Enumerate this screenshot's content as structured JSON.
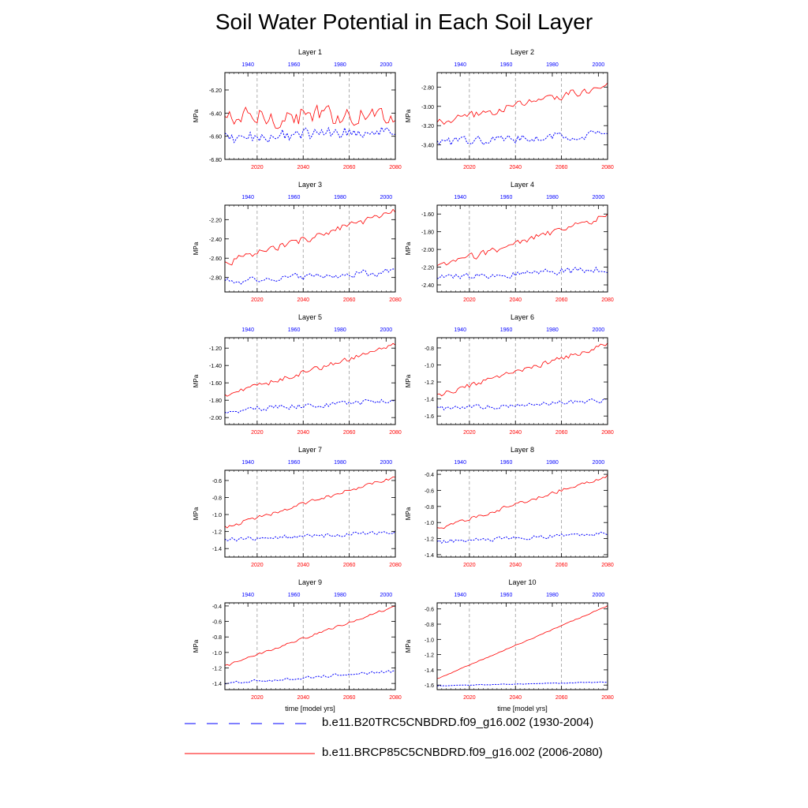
{
  "title": "Soil Water Potential in Each Soil Layer",
  "colors": {
    "historical": "#0000ff",
    "future": "#ff0000",
    "grid": "#9a9a9a"
  },
  "chart_data": {
    "type": "line",
    "ylabel": "MPa",
    "xlabel": "time [model yrs]",
    "x_bottom": {
      "label": "time [model yrs]",
      "range": [
        2006,
        2080
      ],
      "ticks": [
        2020,
        2040,
        2060,
        2080
      ],
      "color": "#ff0000"
    },
    "x_top": {
      "range": [
        1930,
        2004
      ],
      "ticks": [
        1940,
        1960,
        1980,
        2000
      ],
      "color": "#0000ff"
    },
    "grid": "vertical dashed at 2020, 2040, 2060",
    "legend": [
      {
        "label": "b.e11.B20TRC5CNBDRD.f09_g16.002 (1930-2004)",
        "style": "dashed",
        "color": "#0000ff"
      },
      {
        "label": "b.e11.BRCP85C5CNBDRD.f09_g16.002 (2006-2080)",
        "style": "solid",
        "color": "#ff0000"
      }
    ],
    "panels": [
      {
        "title": "Layer 1",
        "ylim": [
          -6.8,
          -6.05
        ],
        "yticks": [
          -6.8,
          -6.6,
          -6.4,
          -6.2
        ],
        "ytick_labels": [
          "-6.80",
          "-6.60",
          "-6.40",
          "-6.20"
        ],
        "red_trend": [
          -6.45,
          -6.4
        ],
        "red_noise": 0.12,
        "blue_trend": [
          -6.62,
          -6.54
        ],
        "blue_noise": 0.07
      },
      {
        "title": "Layer 2",
        "ylim": [
          -3.55,
          -2.65
        ],
        "yticks": [
          -3.4,
          -3.2,
          -3.0,
          -2.8
        ],
        "ytick_labels": [
          "-3.40",
          "-3.20",
          "-3.00",
          "-2.80"
        ],
        "red_trend": [
          -3.18,
          -2.78
        ],
        "red_noise": 0.06,
        "blue_trend": [
          -3.38,
          -3.28
        ],
        "blue_noise": 0.06
      },
      {
        "title": "Layer 3",
        "ylim": [
          -2.95,
          -2.05
        ],
        "yticks": [
          -2.8,
          -2.6,
          -2.4,
          -2.2
        ],
        "ytick_labels": [
          "-2.80",
          "-2.60",
          "-2.40",
          "-2.20"
        ],
        "red_trend": [
          -2.65,
          -2.12
        ],
        "red_noise": 0.05,
        "blue_trend": [
          -2.84,
          -2.74
        ],
        "blue_noise": 0.05
      },
      {
        "title": "Layer 4",
        "ylim": [
          -2.48,
          -1.5
        ],
        "yticks": [
          -2.4,
          -2.2,
          -2.0,
          -1.8,
          -1.6
        ],
        "ytick_labels": [
          "-2.40",
          "-2.20",
          "-2.00",
          "-1.80",
          "-1.60"
        ],
        "red_trend": [
          -2.2,
          -1.62
        ],
        "red_noise": 0.05,
        "blue_trend": [
          -2.32,
          -2.22
        ],
        "blue_noise": 0.05
      },
      {
        "title": "Layer 5",
        "ylim": [
          -2.08,
          -1.08
        ],
        "yticks": [
          -2.0,
          -1.8,
          -1.6,
          -1.4,
          -1.2
        ],
        "ytick_labels": [
          "-2.00",
          "-1.80",
          "-1.60",
          "-1.40",
          "-1.20"
        ],
        "red_trend": [
          -1.75,
          -1.16
        ],
        "red_noise": 0.04,
        "blue_trend": [
          -1.92,
          -1.8
        ],
        "blue_noise": 0.04
      },
      {
        "title": "Layer 6",
        "ylim": [
          -1.7,
          -0.68
        ],
        "yticks": [
          -1.6,
          -1.4,
          -1.2,
          -1.0,
          -0.8
        ],
        "ytick_labels": [
          "-1.6",
          "-1.4",
          "-1.2",
          "-1.0",
          "-0.8"
        ],
        "red_trend": [
          -1.36,
          -0.76
        ],
        "red_noise": 0.04,
        "blue_trend": [
          -1.52,
          -1.42
        ],
        "blue_noise": 0.04
      },
      {
        "title": "Layer 7",
        "ylim": [
          -1.5,
          -0.48
        ],
        "yticks": [
          -1.4,
          -1.2,
          -1.0,
          -0.8,
          -0.6
        ],
        "ytick_labels": [
          "-1.4",
          "-1.2",
          "-1.0",
          "-0.8",
          "-0.6"
        ],
        "red_trend": [
          -1.15,
          -0.56
        ],
        "red_noise": 0.03,
        "blue_trend": [
          -1.3,
          -1.2
        ],
        "blue_noise": 0.035
      },
      {
        "title": "Layer 8",
        "ylim": [
          -1.43,
          -0.35
        ],
        "yticks": [
          -1.4,
          -1.2,
          -1.0,
          -0.8,
          -0.6,
          -0.4
        ],
        "ytick_labels": [
          "-1.4",
          "-1.2",
          "-1.0",
          "-0.8",
          "-0.6",
          "-0.4"
        ],
        "red_trend": [
          -1.08,
          -0.42
        ],
        "red_noise": 0.03,
        "blue_trend": [
          -1.24,
          -1.14
        ],
        "blue_noise": 0.035
      },
      {
        "title": "Layer 9",
        "ylim": [
          -1.48,
          -0.36
        ],
        "yticks": [
          -1.4,
          -1.2,
          -1.0,
          -0.8,
          -0.6,
          -0.4
        ],
        "ytick_labels": [
          "-1.4",
          "-1.2",
          "-1.0",
          "-0.8",
          "-0.6",
          "-0.4"
        ],
        "red_trend": [
          -1.18,
          -0.4
        ],
        "red_noise": 0.02,
        "blue_trend": [
          -1.4,
          -1.24
        ],
        "blue_noise": 0.025
      },
      {
        "title": "Layer 10",
        "ylim": [
          -1.66,
          -0.52
        ],
        "yticks": [
          -1.6,
          -1.4,
          -1.2,
          -1.0,
          -0.8,
          -0.6
        ],
        "ytick_labels": [
          "-1.6",
          "-1.4",
          "-1.2",
          "-1.0",
          "-0.8",
          "-0.6"
        ],
        "red_trend": [
          -1.52,
          -0.56
        ],
        "red_noise": 0.008,
        "blue_trend": [
          -1.61,
          -1.56
        ],
        "blue_noise": 0.006
      }
    ]
  }
}
